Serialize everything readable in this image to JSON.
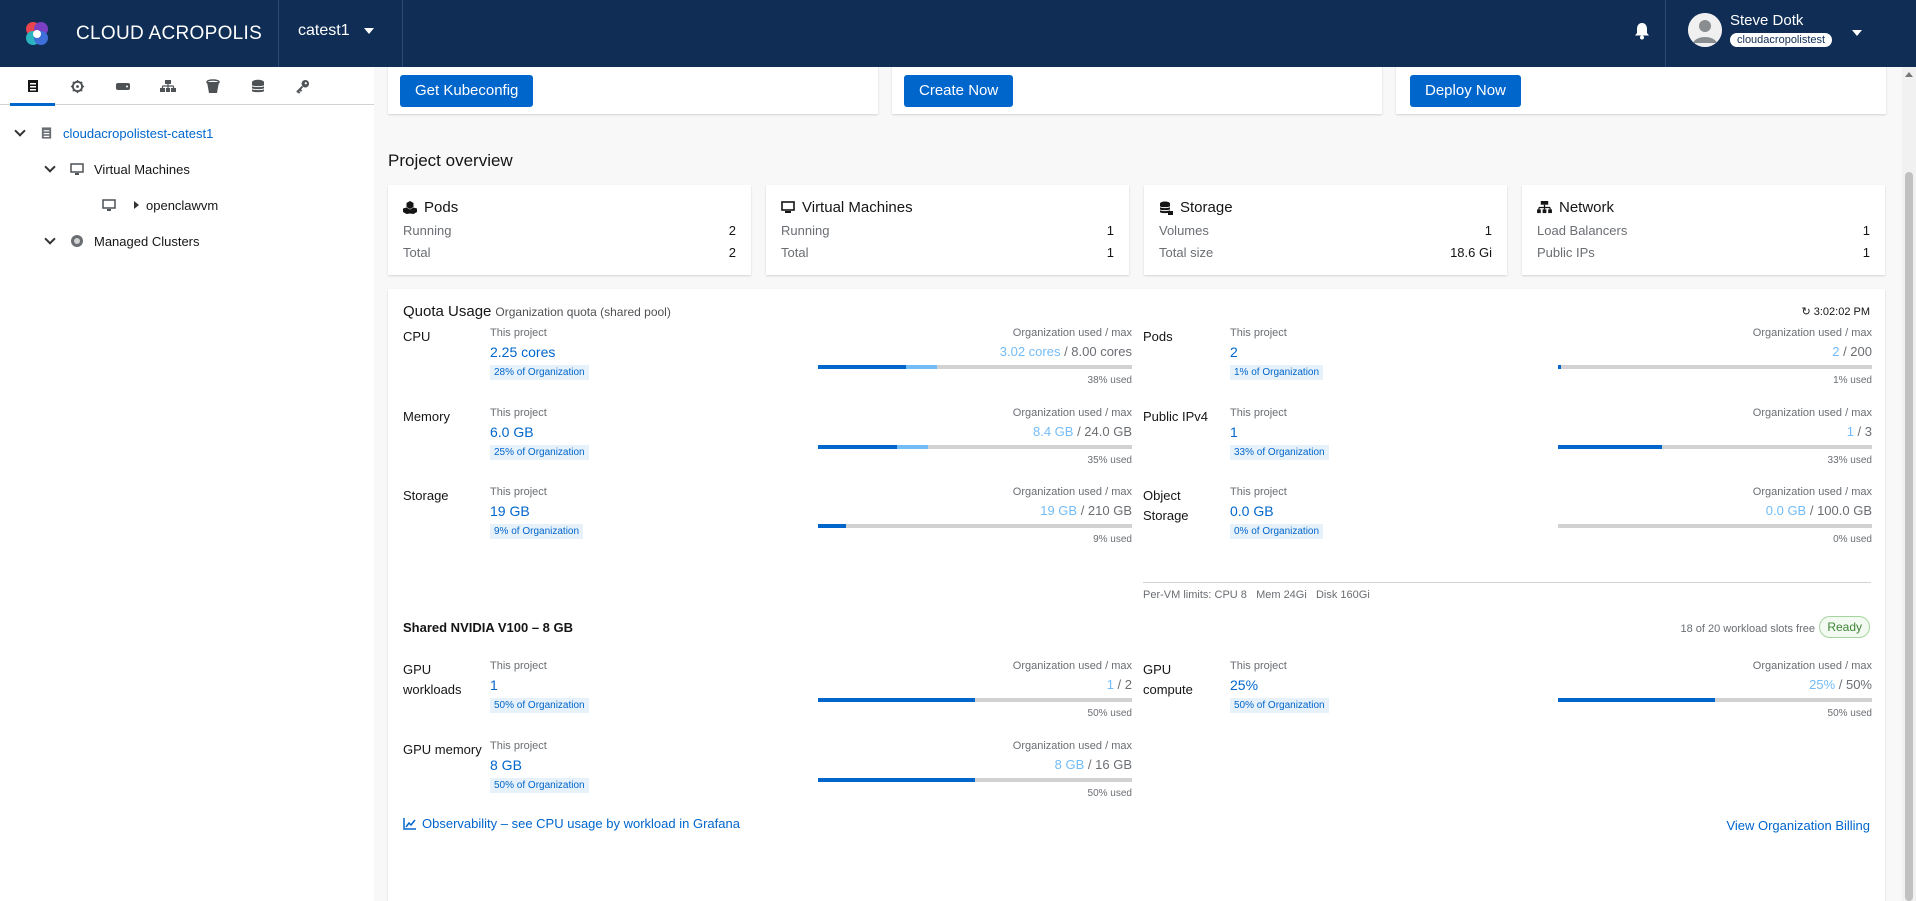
{
  "header": {
    "brand": "CLOUD ACROPOLIS",
    "project": "catest1",
    "user_name": "Steve Dotk",
    "user_org": "cloudacropolistest"
  },
  "sidebar": {
    "tree": {
      "root": "cloudacropolistest-catest1",
      "vm_group": "Virtual Machines",
      "vm_item": "openclawvm",
      "clusters": "Managed Clusters"
    }
  },
  "actions": {
    "kubeconfig": "Get Kubeconfig",
    "create": "Create Now",
    "deploy": "Deploy Now"
  },
  "overview": {
    "title": "Project overview",
    "pods": {
      "title": "Pods",
      "r1_label": "Running",
      "r1_value": "2",
      "r2_label": "Total",
      "r2_value": "2"
    },
    "vms": {
      "title": "Virtual Machines",
      "r1_label": "Running",
      "r1_value": "1",
      "r2_label": "Total",
      "r2_value": "1"
    },
    "storage": {
      "title": "Storage",
      "r1_label": "Volumes",
      "r1_value": "1",
      "r2_label": "Total size",
      "r2_value": "18.6 Gi"
    },
    "network": {
      "title": "Network",
      "r1_label": "Load Balancers",
      "r1_value": "1",
      "r2_label": "Public IPs",
      "r2_value": "1"
    }
  },
  "quota": {
    "title": "Quota Usage",
    "subtitle": "Organization quota (shared pool)",
    "refreshed": "↻ 3:02:02 PM",
    "this_project": "This project",
    "org_label": "Organization used / max",
    "rows": [
      {
        "name": "CPU",
        "value": "2.25 cores",
        "pct": "28% of Organization",
        "org_used": "3.02 cores",
        "org_max": " / 8.00 cores",
        "used": "38% used",
        "project_fraction": 0.28,
        "org_fraction": 0.38
      },
      {
        "name": "Memory",
        "value": "6.0 GB",
        "pct": "25% of Organization",
        "org_used": "8.4 GB",
        "org_max": " / 24.0 GB",
        "used": "35% used",
        "project_fraction": 0.25,
        "org_fraction": 0.35
      },
      {
        "name": "Storage",
        "value": "19 GB",
        "pct": "9% of Organization",
        "org_used": "19 GB",
        "org_max": " / 210 GB",
        "used": "9% used",
        "project_fraction": 0.09,
        "org_fraction": 0.09
      },
      {
        "name": "Pods",
        "value": "2",
        "pct": "1% of Organization",
        "org_used": "2",
        "org_max": " / 200",
        "used": "1% used",
        "project_fraction": 0.01,
        "org_fraction": 0.01
      },
      {
        "name": "Public IPv4",
        "value": "1",
        "pct": "33% of Organization",
        "org_used": "1",
        "org_max": " / 3",
        "used": "33% used",
        "project_fraction": 0.33,
        "org_fraction": 0.33
      },
      {
        "name": "Object Storage",
        "value": "0.0 GB",
        "pct": "0% of Organization",
        "org_used": "0.0 GB",
        "org_max": " / 100.0 GB",
        "used": "0% used",
        "project_fraction": 0.0,
        "org_fraction": 0.0
      }
    ],
    "per_vm": "Per-VM limits: CPU 8   Mem 24Gi   Disk 160Gi"
  },
  "gpu": {
    "title": "Shared NVIDIA V100 – 8 GB",
    "slots": "18 of 20 workload slots free",
    "status": "Ready",
    "rows": [
      {
        "name": "GPU workloads",
        "value": "1",
        "pct": "50% of Organization",
        "org_used": "1",
        "org_max": " / 2",
        "used": "50% used",
        "project_fraction": 0.5,
        "org_fraction": 0.5
      },
      {
        "name": "GPU memory",
        "value": "8 GB",
        "pct": "50% of Organization",
        "org_used": "8 GB",
        "org_max": " / 16 GB",
        "used": "50% used",
        "project_fraction": 0.5,
        "org_fraction": 0.5
      },
      {
        "name": "GPU compute",
        "value": "25%",
        "pct": "50% of Organization",
        "org_used": "25%",
        "org_max": " / 50%",
        "used": "50% used",
        "project_fraction": 0.5,
        "org_fraction": 0.5
      }
    ]
  },
  "footer": {
    "observability": "Observability – see CPU usage by workload in Grafana",
    "billing": "View Organization Billing"
  },
  "colors": {
    "header_bg": "#0f2d55",
    "primary": "#0066cc",
    "light_bar": "#73bcf7",
    "ready": "#3e8635"
  }
}
